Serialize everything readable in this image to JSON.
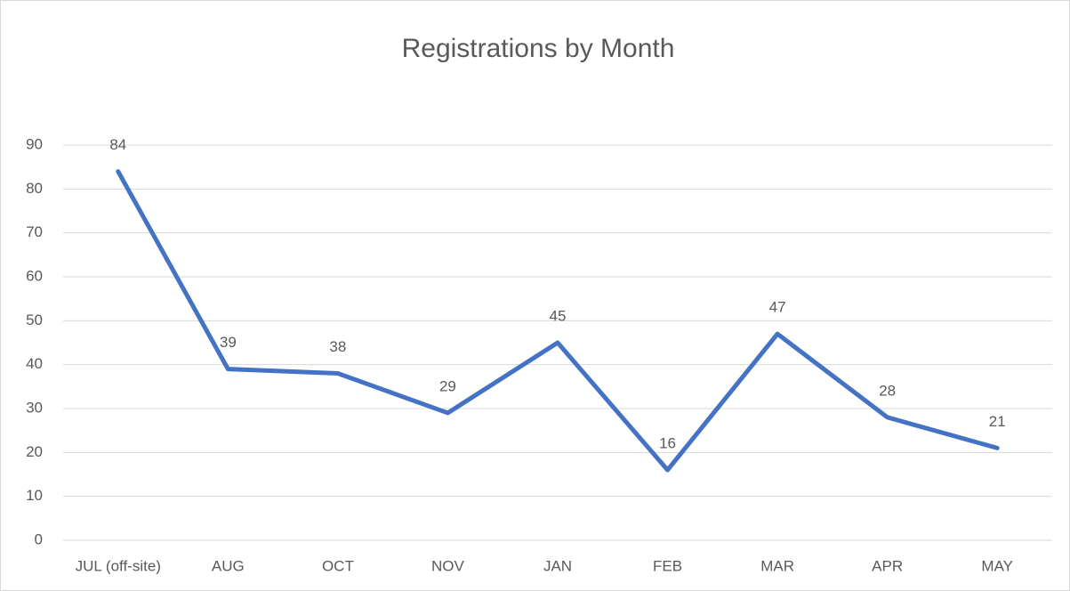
{
  "chart_data": {
    "type": "line",
    "title": "Registrations by Month",
    "categories": [
      "JUL (off-site)",
      "AUG",
      "OCT",
      "NOV",
      "JAN",
      "FEB",
      "MAR",
      "APR",
      "MAY"
    ],
    "values": [
      84,
      39,
      38,
      29,
      45,
      16,
      47,
      28,
      21
    ],
    "color": "#4472c4",
    "ylim": [
      0,
      90
    ],
    "yticks": [
      0,
      10,
      20,
      30,
      40,
      50,
      60,
      70,
      80,
      90
    ],
    "grid": true
  }
}
